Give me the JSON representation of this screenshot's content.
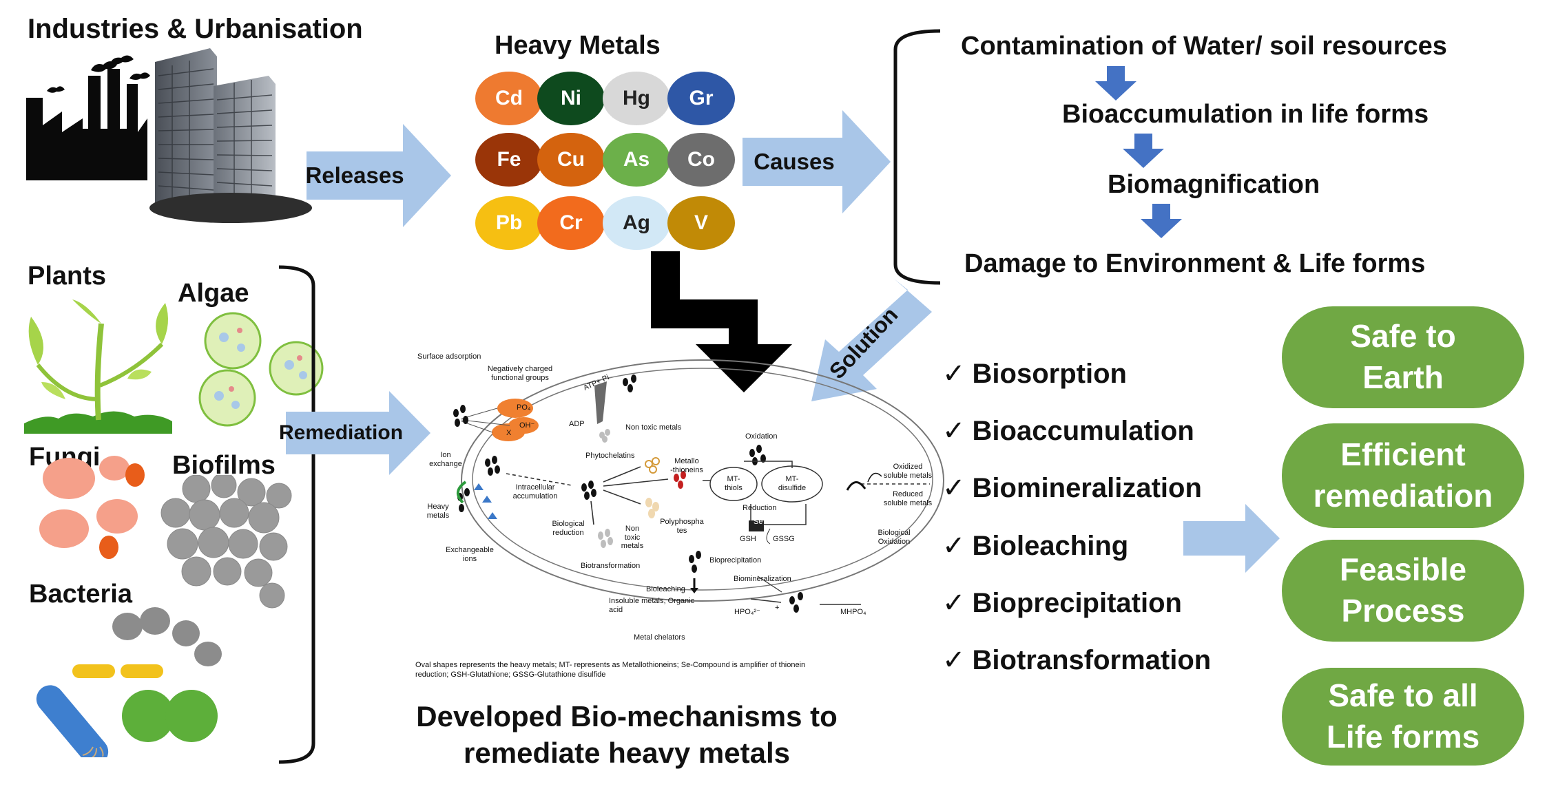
{
  "header": {
    "industries": "Industries & Urbanisation",
    "heavy_metals": "Heavy Metals"
  },
  "metals": [
    {
      "symbol": "Cd",
      "color": "#ee7a30",
      "text": "#ffffff"
    },
    {
      "symbol": "Ni",
      "color": "#0e4a1e",
      "text": "#ffffff"
    },
    {
      "symbol": "Hg",
      "color": "#d8d8d8",
      "text": "#222222"
    },
    {
      "symbol": "Gr",
      "color": "#2e57a6",
      "text": "#ffffff"
    },
    {
      "symbol": "Fe",
      "color": "#9a3508",
      "text": "#ffffff"
    },
    {
      "symbol": "Cu",
      "color": "#d4630e",
      "text": "#ffffff"
    },
    {
      "symbol": "As",
      "color": "#6cb04a",
      "text": "#ffffff"
    },
    {
      "symbol": "Co",
      "color": "#6d6d6d",
      "text": "#ffffff"
    },
    {
      "symbol": "Pb",
      "color": "#f6bf12",
      "text": "#ffffff"
    },
    {
      "symbol": "Cr",
      "color": "#f26b1d",
      "text": "#ffffff"
    },
    {
      "symbol": "Ag",
      "color": "#d2e8f6",
      "text": "#222222"
    },
    {
      "symbol": "V",
      "color": "#c18a06",
      "text": "#ffffff"
    }
  ],
  "arrows": {
    "releases": "Releases",
    "causes": "Causes",
    "solution": "Solution",
    "remediation": "Remediation"
  },
  "flow": [
    "Contamination of Water/ soil resources",
    "Bioaccumulation in life forms",
    "Biomagnification",
    "Damage to Environment & Life forms"
  ],
  "organisms": {
    "plants": "Plants",
    "algae": "Algae",
    "fungi": "Fungi",
    "biofilms": "Biofilms",
    "bacteria": "Bacteria"
  },
  "mechanisms": [
    "Biosorption",
    "Bioaccumulation",
    "Biomineralization",
    "Bioleaching",
    "Bioprecipitation",
    "Biotransformation"
  ],
  "check_mark": "✓",
  "benefits": [
    {
      "line1": "Safe to",
      "line2": "Earth"
    },
    {
      "line1": "Efficient",
      "line2": "remediation"
    },
    {
      "line1": "Feasible",
      "line2": "Process"
    },
    {
      "line1": "Safe to all",
      "line2": "Life forms"
    }
  ],
  "bottom_title": {
    "line1": "Developed Bio-mechanisms to",
    "line2": "remediate heavy metals"
  },
  "mechanism_diagram": {
    "surface_adsorption": "Surface adsorption",
    "negative_groups_1": "Negatively charged",
    "negative_groups_2": "functional groups",
    "po4": "PO₄",
    "oh": "OH⁻",
    "x": "X",
    "atp": "ATP+ Pi",
    "adp": "ADP",
    "non_toxic_metals_top": "Non toxic metals",
    "ion_exchange_1": "Ion",
    "ion_exchange_2": "exchange",
    "heavy_metals_1": "Heavy",
    "heavy_metals_2": "metals",
    "exchangeable_1": "Exchangeable",
    "exchangeable_2": "ions",
    "phytochelatins": "Phytochelatins",
    "metallothioneins_1": "Metallo",
    "metallothioneins_2": "-thioneins",
    "intracellular_1": "Intracellular",
    "intracellular_2": "accumulation",
    "polyphosphates_1": "Polyphospha",
    "polyphosphates_2": "tes",
    "biological_reduction_1": "Biological",
    "biological_reduction_2": "reduction",
    "non_toxic_1": "Non",
    "non_toxic_2": "toxic",
    "non_toxic_3": "metals",
    "biotransformation": "Biotransformation",
    "oxidation": "Oxidation",
    "mt_thiols_1": "MT-",
    "mt_thiols_2": "thiols",
    "mt_disulfide_1": "MT-",
    "mt_disulfide_2": "disulfide",
    "reduction": "Reduction",
    "se": "Se",
    "gsh": "GSH",
    "gssg": "GSSG",
    "oxidized_1": "Oxidized",
    "oxidized_2": "soluble metals",
    "reduced_1": "Reduced",
    "reduced_2": "soluble metals",
    "biological_oxidation_1": "Biological",
    "biological_oxidation_2": "Oxidation",
    "bioprecipitation": "Bioprecipitation",
    "biomineralization": "Biomineralization",
    "bioleaching": "Bioleaching",
    "insoluble_1": "Insoluble metals, Organic",
    "insoluble_2": "acid",
    "hpo4": "HPO₄²⁻",
    "plus": "+",
    "mhpo4": "MHPO₄",
    "metal_chelators": "Metal chelators",
    "caption_1": "Oval shapes represents the heavy metals; MT- represents as Metallothioneins; Se-Compound is amplifier of thionein",
    "caption_2": "reduction; GSH-Glutathione; GSSG-Glutathione disulfide"
  },
  "colors": {
    "block_arrow": "#a9c6e8",
    "flow_arrow": "#4472c4",
    "pill_green": "#70a844"
  }
}
